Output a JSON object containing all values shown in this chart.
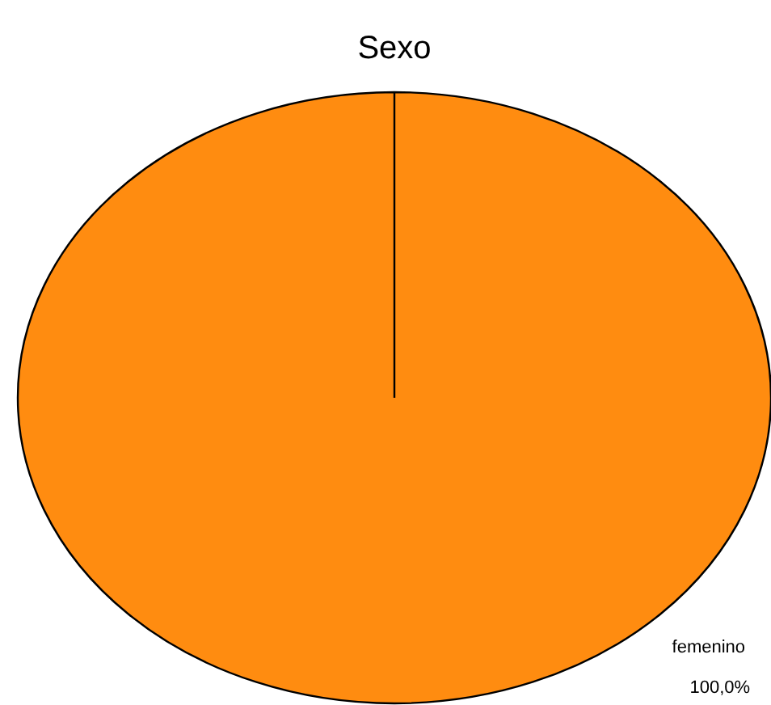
{
  "chart_data": {
    "type": "pie",
    "title": "Sexo",
    "categories": [
      "femenino"
    ],
    "values": [
      100
    ],
    "colors": [
      "#ff8c10"
    ],
    "value_labels": [
      "100,0%"
    ]
  }
}
